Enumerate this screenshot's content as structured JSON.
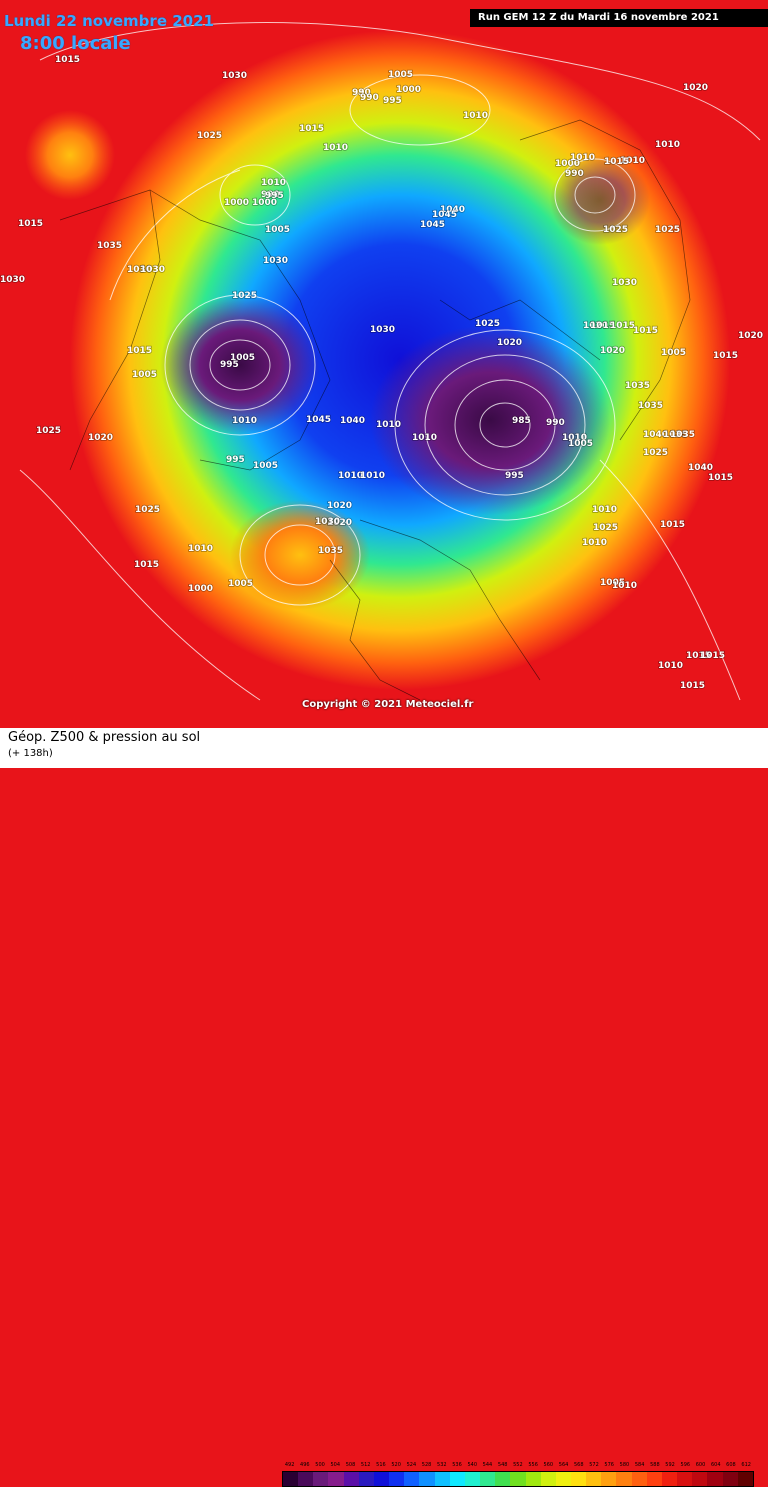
{
  "header": {
    "date": "Lundi 22 novembre 2021",
    "time": "8:00 locale",
    "run": "Run GEM 12 Z du Mardi 16 novembre 2021"
  },
  "copyright": "Copyright © 2021 Meteociel.fr",
  "footer": {
    "title": "Géop. Z500 & pression au sol",
    "subtitle": "(+ 138h)"
  },
  "scale": {
    "values": [
      "492",
      "496",
      "500",
      "504",
      "508",
      "512",
      "516",
      "520",
      "524",
      "528",
      "532",
      "536",
      "540",
      "544",
      "548",
      "552",
      "556",
      "560",
      "564",
      "568",
      "572",
      "576",
      "580",
      "584",
      "588",
      "592",
      "596",
      "600",
      "604",
      "608",
      "612"
    ],
    "colors": [
      "#2a0033",
      "#4a0a5a",
      "#6a1a7a",
      "#861c8c",
      "#5b0fa8",
      "#2a1ac0",
      "#1010d8",
      "#1030f0",
      "#1060ff",
      "#1090ff",
      "#10c0ff",
      "#10e8ff",
      "#20f0d0",
      "#30e890",
      "#40e050",
      "#70e020",
      "#a0e810",
      "#d0f010",
      "#f0f010",
      "#ffe010",
      "#ffc010",
      "#ffa010",
      "#ff8010",
      "#ff6010",
      "#ff4010",
      "#f02010",
      "#d81010",
      "#c00810",
      "#a00010",
      "#800010",
      "#600000"
    ]
  },
  "pressure_labels": [
    "1015",
    "1030",
    "1005",
    "1000",
    "995",
    "990",
    "990",
    "1010",
    "1010",
    "1025",
    "1015",
    "1010",
    "1000",
    "990",
    "1000",
    "995",
    "1005",
    "1040",
    "1045",
    "1045",
    "1030",
    "1025",
    "1015",
    "990",
    "1000",
    "1025",
    "1035",
    "1030",
    "1030",
    "1025",
    "1020",
    "1015",
    "1005",
    "1005",
    "995",
    "1010",
    "1030",
    "1045",
    "1040",
    "1030",
    "1025",
    "1020",
    "1010",
    "1010",
    "985",
    "990",
    "1010",
    "1005",
    "995",
    "1010",
    "1010",
    "1020",
    "1020",
    "995",
    "1005",
    "1010",
    "1025",
    "1030",
    "1035",
    "1010",
    "1015",
    "1000",
    "1005",
    "1025",
    "1020",
    "1015",
    "1015",
    "1020",
    "1015",
    "1005",
    "1015",
    "1020",
    "1020",
    "1010",
    "1010",
    "1015",
    "1010",
    "1030",
    "1035",
    "1035",
    "1040",
    "1035",
    "1025",
    "1035",
    "1040",
    "1015",
    "1015",
    "1025",
    "1010",
    "1005",
    "1010",
    "1010",
    "1015",
    "1015",
    "1015",
    "1015"
  ]
}
